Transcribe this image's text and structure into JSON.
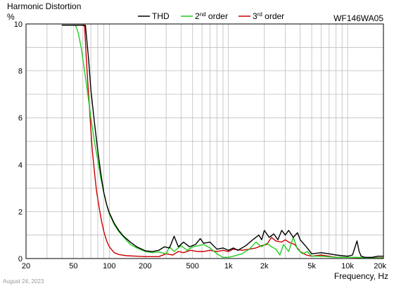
{
  "chart_data": {
    "type": "line",
    "title": "Harmonic Distortion",
    "ylabel": "%",
    "xlabel": "Frequency, Hz",
    "model": "WF146WA05",
    "date": "August 24, 2023",
    "x_scale": "log",
    "xlim": [
      20,
      20000
    ],
    "ylim": [
      0,
      10
    ],
    "grid": true,
    "legend_position": "top",
    "y_ticks": [
      0,
      2,
      4,
      6,
      8,
      10
    ],
    "x_ticks": [
      {
        "value": 20,
        "label": "20"
      },
      {
        "value": 50,
        "label": "50"
      },
      {
        "value": 100,
        "label": "100"
      },
      {
        "value": 200,
        "label": "200"
      },
      {
        "value": 500,
        "label": "500"
      },
      {
        "value": 1000,
        "label": "1k"
      },
      {
        "value": 2000,
        "label": "2k"
      },
      {
        "value": 5000,
        "label": "5k"
      },
      {
        "value": 10000,
        "label": "10k"
      },
      {
        "value": 20000,
        "label": "20k"
      }
    ],
    "legend": [
      {
        "name": "THD",
        "sup": "",
        "suffix": "",
        "color": "#000000"
      },
      {
        "name": "2",
        "sup": "nd",
        "suffix": " order",
        "color": "#22cc22"
      },
      {
        "name": "3",
        "sup": "rd",
        "suffix": " order",
        "color": "#cc0000"
      }
    ],
    "series": [
      {
        "name": "THD",
        "color": "#000000",
        "points": [
          [
            40,
            9.95
          ],
          [
            60,
            9.95
          ],
          [
            63,
            9.95
          ],
          [
            67,
            8.5
          ],
          [
            70,
            7.2
          ],
          [
            75,
            5.8
          ],
          [
            80,
            4.6
          ],
          [
            85,
            3.6
          ],
          [
            90,
            2.8
          ],
          [
            95,
            2.3
          ],
          [
            100,
            1.95
          ],
          [
            110,
            1.5
          ],
          [
            120,
            1.2
          ],
          [
            130,
            0.98
          ],
          [
            150,
            0.7
          ],
          [
            170,
            0.5
          ],
          [
            200,
            0.33
          ],
          [
            230,
            0.3
          ],
          [
            260,
            0.35
          ],
          [
            290,
            0.5
          ],
          [
            320,
            0.45
          ],
          [
            350,
            0.95
          ],
          [
            380,
            0.5
          ],
          [
            420,
            0.7
          ],
          [
            470,
            0.5
          ],
          [
            530,
            0.6
          ],
          [
            580,
            0.85
          ],
          [
            620,
            0.65
          ],
          [
            700,
            0.7
          ],
          [
            800,
            0.4
          ],
          [
            900,
            0.45
          ],
          [
            1000,
            0.35
          ],
          [
            1100,
            0.45
          ],
          [
            1200,
            0.35
          ],
          [
            1400,
            0.55
          ],
          [
            1600,
            0.8
          ],
          [
            1800,
            1.0
          ],
          [
            1900,
            0.8
          ],
          [
            2000,
            1.2
          ],
          [
            2200,
            0.9
          ],
          [
            2400,
            1.05
          ],
          [
            2600,
            0.8
          ],
          [
            2800,
            1.2
          ],
          [
            3000,
            1.0
          ],
          [
            3200,
            1.2
          ],
          [
            3500,
            0.9
          ],
          [
            3800,
            1.1
          ],
          [
            4000,
            0.8
          ],
          [
            4500,
            0.5
          ],
          [
            5000,
            0.2
          ],
          [
            6000,
            0.25
          ],
          [
            7000,
            0.2
          ],
          [
            8000,
            0.15
          ],
          [
            9000,
            0.12
          ],
          [
            10000,
            0.1
          ],
          [
            11000,
            0.15
          ],
          [
            12000,
            0.75
          ],
          [
            12500,
            0.3
          ],
          [
            13000,
            0.1
          ],
          [
            14000,
            0.05
          ],
          [
            16000,
            0.05
          ],
          [
            18000,
            0.1
          ],
          [
            20000,
            0.1
          ]
        ]
      },
      {
        "name": "2nd order",
        "color": "#22cc22",
        "points": [
          [
            40,
            9.95
          ],
          [
            52,
            9.95
          ],
          [
            55,
            9.6
          ],
          [
            58,
            9.0
          ],
          [
            62,
            8.0
          ],
          [
            66,
            7.0
          ],
          [
            70,
            6.0
          ],
          [
            75,
            5.0
          ],
          [
            80,
            4.2
          ],
          [
            85,
            3.4
          ],
          [
            90,
            2.8
          ],
          [
            95,
            2.3
          ],
          [
            100,
            1.9
          ],
          [
            110,
            1.45
          ],
          [
            120,
            1.15
          ],
          [
            130,
            0.95
          ],
          [
            150,
            0.6
          ],
          [
            170,
            0.45
          ],
          [
            200,
            0.3
          ],
          [
            230,
            0.25
          ],
          [
            260,
            0.28
          ],
          [
            300,
            0.2
          ],
          [
            320,
            0.5
          ],
          [
            350,
            0.3
          ],
          [
            400,
            0.55
          ],
          [
            450,
            0.35
          ],
          [
            500,
            0.5
          ],
          [
            560,
            0.55
          ],
          [
            620,
            0.6
          ],
          [
            700,
            0.45
          ],
          [
            800,
            0.2
          ],
          [
            900,
            0.05
          ],
          [
            1000,
            0.05
          ],
          [
            1100,
            0.1
          ],
          [
            1300,
            0.2
          ],
          [
            1500,
            0.4
          ],
          [
            1700,
            0.7
          ],
          [
            1900,
            0.5
          ],
          [
            2100,
            0.65
          ],
          [
            2300,
            0.5
          ],
          [
            2500,
            0.4
          ],
          [
            2700,
            0.15
          ],
          [
            2900,
            0.6
          ],
          [
            3200,
            0.3
          ],
          [
            3500,
            0.9
          ],
          [
            3800,
            0.4
          ],
          [
            4200,
            0.2
          ],
          [
            4600,
            0.3
          ],
          [
            5000,
            0.1
          ],
          [
            6000,
            0.1
          ],
          [
            8000,
            0.05
          ],
          [
            10000,
            0.05
          ],
          [
            12000,
            0.05
          ],
          [
            14000,
            0.03
          ],
          [
            17000,
            0.02
          ],
          [
            20000,
            0.02
          ]
        ]
      },
      {
        "name": "3rd order",
        "color": "#cc0000",
        "points": [
          [
            40,
            9.95
          ],
          [
            60,
            9.95
          ],
          [
            62,
            9.9
          ],
          [
            64,
            8.6
          ],
          [
            66,
            7.5
          ],
          [
            68,
            6.5
          ],
          [
            70,
            5.5
          ],
          [
            72,
            4.6
          ],
          [
            75,
            3.7
          ],
          [
            78,
            2.9
          ],
          [
            82,
            2.2
          ],
          [
            86,
            1.6
          ],
          [
            90,
            1.15
          ],
          [
            95,
            0.75
          ],
          [
            100,
            0.5
          ],
          [
            110,
            0.25
          ],
          [
            120,
            0.17
          ],
          [
            140,
            0.12
          ],
          [
            170,
            0.1
          ],
          [
            200,
            0.08
          ],
          [
            260,
            0.08
          ],
          [
            300,
            0.2
          ],
          [
            340,
            0.15
          ],
          [
            380,
            0.3
          ],
          [
            420,
            0.25
          ],
          [
            480,
            0.35
          ],
          [
            550,
            0.3
          ],
          [
            620,
            0.3
          ],
          [
            700,
            0.35
          ],
          [
            800,
            0.3
          ],
          [
            900,
            0.35
          ],
          [
            1000,
            0.3
          ],
          [
            1100,
            0.4
          ],
          [
            1300,
            0.35
          ],
          [
            1500,
            0.4
          ],
          [
            1700,
            0.45
          ],
          [
            1900,
            0.55
          ],
          [
            2100,
            0.6
          ],
          [
            2300,
            0.9
          ],
          [
            2500,
            0.75
          ],
          [
            2800,
            0.7
          ],
          [
            3000,
            0.8
          ],
          [
            3200,
            0.7
          ],
          [
            3600,
            0.6
          ],
          [
            4000,
            0.3
          ],
          [
            4500,
            0.15
          ],
          [
            5000,
            0.1
          ],
          [
            6000,
            0.15
          ],
          [
            8000,
            0.05
          ],
          [
            10000,
            0.05
          ],
          [
            14000,
            0.03
          ],
          [
            20000,
            0.03
          ]
        ]
      }
    ]
  }
}
